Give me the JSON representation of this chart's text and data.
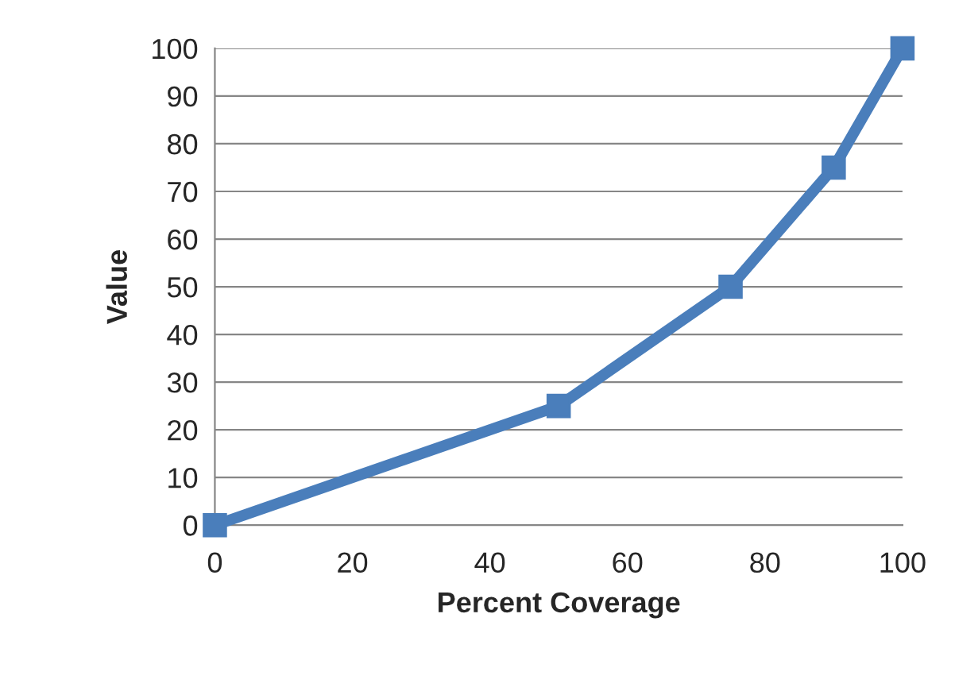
{
  "chart_data": {
    "type": "line",
    "xlabel": "Percent Coverage",
    "ylabel": "Value",
    "x": [
      0,
      50,
      75,
      90,
      100
    ],
    "series": [
      {
        "color": "#4a7ebb",
        "values": [
          0,
          25,
          50,
          75,
          100
        ]
      }
    ],
    "xlim": [
      0,
      100
    ],
    "xticks": [
      0,
      20,
      40,
      60,
      80,
      100
    ],
    "ylim": [
      0,
      100
    ],
    "yticks": [
      0,
      10,
      20,
      30,
      40,
      50,
      60,
      70,
      80,
      90,
      100
    ],
    "grid": "y",
    "marker": "square",
    "line_style": "solid"
  }
}
